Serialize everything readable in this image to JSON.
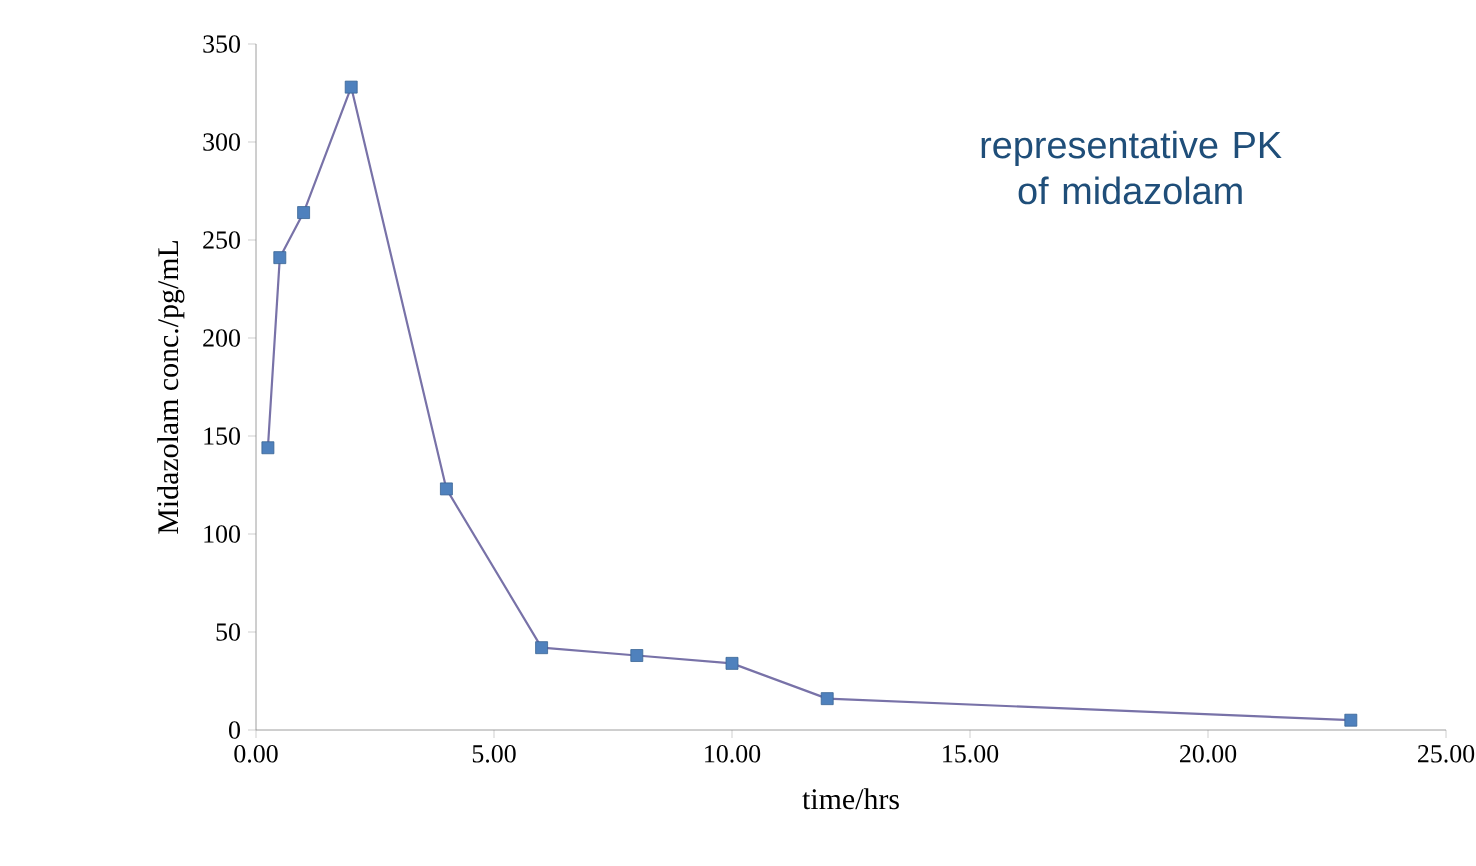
{
  "chart_data": {
    "type": "line",
    "xlabel": "time/hrs",
    "ylabel": "Midazolam conc./pg/mL",
    "annotations": [
      "representative PK of midazolam"
    ],
    "series": [
      {
        "x": [
          0.25,
          0.5,
          1,
          2,
          4,
          6,
          8,
          10,
          12,
          23
        ],
        "values": [
          144,
          241,
          264,
          328,
          123,
          42,
          38,
          34,
          16,
          5
        ],
        "color": "#7872a8"
      }
    ],
    "marker": "square",
    "line_style": "solid",
    "grid": false,
    "xlim": [
      0,
      25
    ],
    "ylim": [
      0,
      350
    ],
    "xticks": [
      {
        "value": 0,
        "label": "0.00"
      },
      {
        "value": 5,
        "label": "5.00"
      },
      {
        "value": 10,
        "label": "10.00"
      },
      {
        "value": 15,
        "label": "15.00"
      },
      {
        "value": 20,
        "label": "20.00"
      },
      {
        "value": 25,
        "label": "25.00"
      }
    ],
    "yticks": [
      0,
      50,
      100,
      150,
      200,
      250,
      300,
      350
    ]
  }
}
